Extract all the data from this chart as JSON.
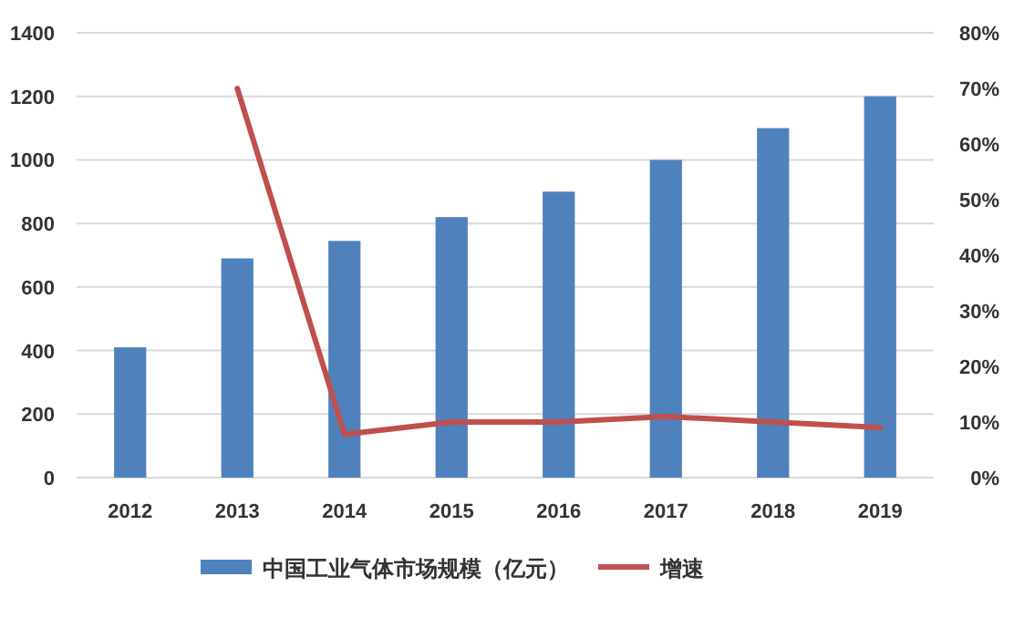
{
  "chart_data": {
    "type": "bar",
    "categories": [
      "2012",
      "2013",
      "2014",
      "2015",
      "2016",
      "2017",
      "2018",
      "2019"
    ],
    "series": [
      {
        "name": "中国工业气体市场规模（亿元）",
        "color": "#4f81bd",
        "values": [
          410,
          690,
          745,
          820,
          900,
          1000,
          1100,
          1200
        ]
      },
      {
        "name": "增速",
        "type": "line",
        "axis": "y2",
        "color": "#c0504d",
        "values": [
          null,
          70,
          7.8,
          10,
          10,
          11,
          10,
          9
        ]
      }
    ],
    "ylim": [
      0,
      1400
    ],
    "yticks": [
      0,
      200,
      400,
      600,
      800,
      1000,
      1200,
      1400
    ],
    "y2lim": [
      0,
      80
    ],
    "y2ticks": [
      {
        "value": 0,
        "label": "0%"
      },
      {
        "value": 10,
        "label": "10%"
      },
      {
        "value": 20,
        "label": "20%"
      },
      {
        "value": 30,
        "label": "30%"
      },
      {
        "value": 40,
        "label": "40%"
      },
      {
        "value": 50,
        "label": "50%"
      },
      {
        "value": 60,
        "label": "60%"
      },
      {
        "value": 70,
        "label": "70%"
      },
      {
        "value": 80,
        "label": "80%"
      }
    ],
    "grid": "y",
    "legend": "bottom"
  }
}
